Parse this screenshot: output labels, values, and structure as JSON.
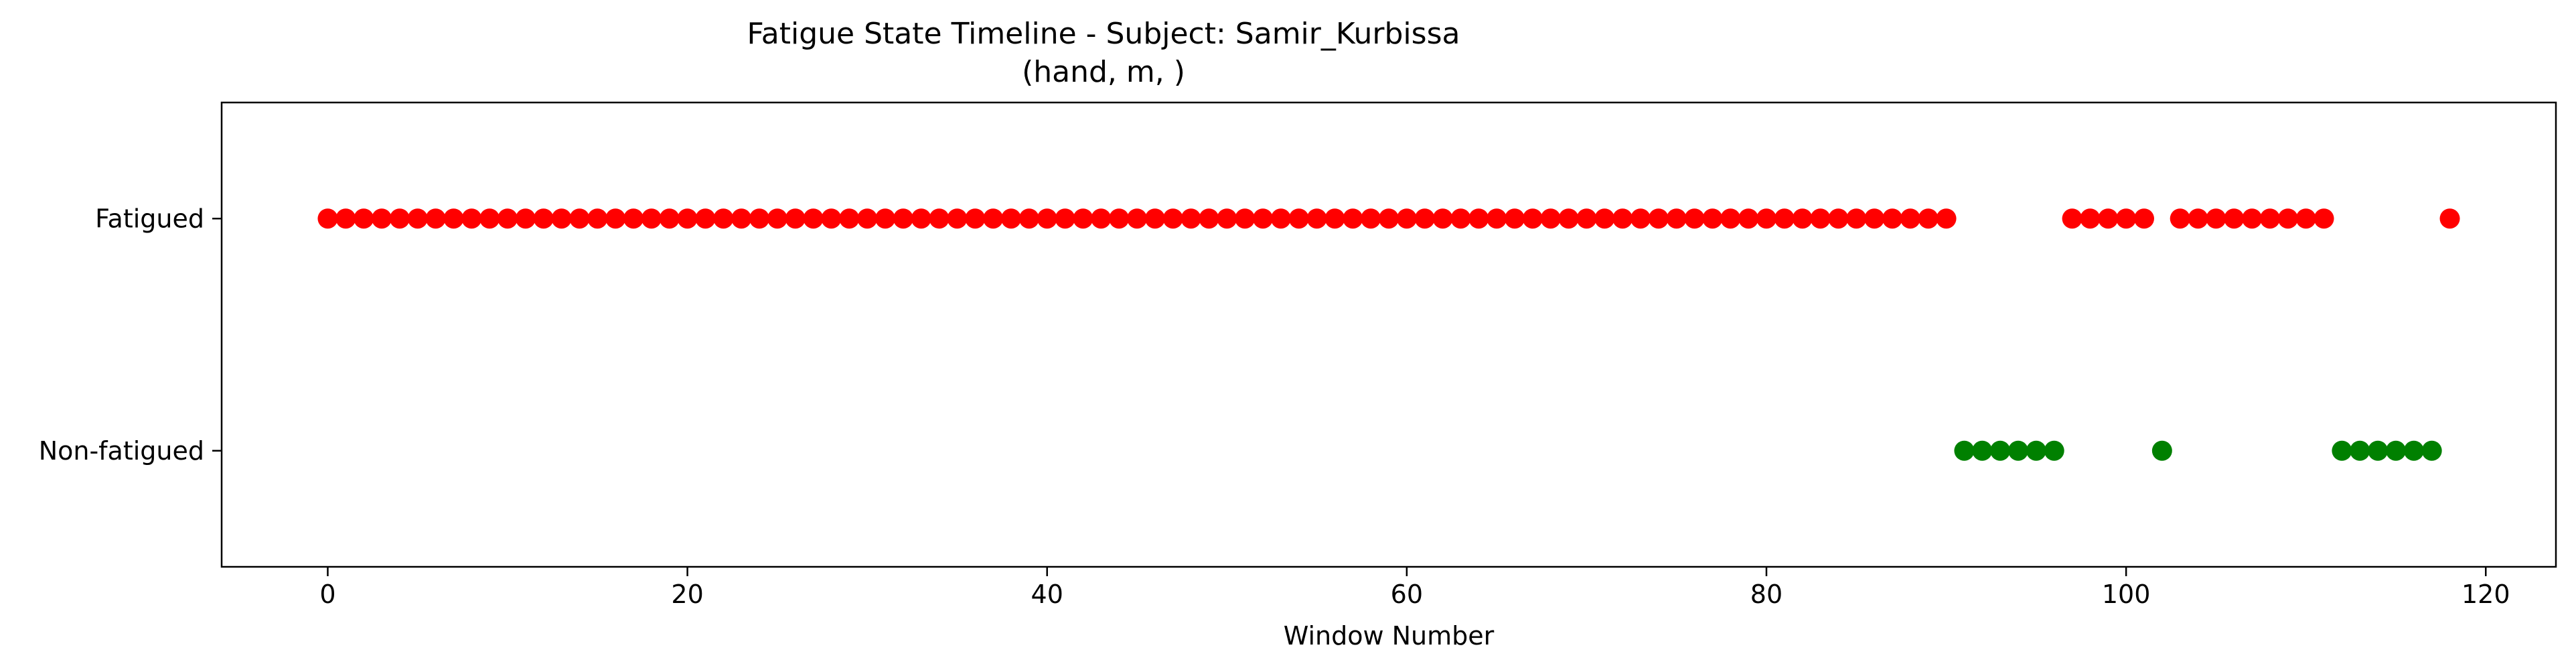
{
  "chart_data": {
    "type": "scatter",
    "title": "Fatigue State Timeline - Subject: Samir_Kurbissa",
    "subtitle": "(hand, m, )",
    "xlabel": "Window Number",
    "ylabel": "",
    "xlim": [
      -5.9,
      123.9
    ],
    "ylim": [
      -0.5,
      1.5
    ],
    "x_ticks": [
      0,
      20,
      40,
      60,
      80,
      100,
      120
    ],
    "y_ticks": [
      {
        "value": 0,
        "label": "Non-fatigued"
      },
      {
        "value": 1,
        "label": "Fatigued"
      }
    ],
    "grid": false,
    "legend": "none",
    "colors": {
      "fatigued": "#ff0000",
      "non_fatigued": "#008000"
    },
    "series": [
      {
        "state": 1,
        "color": "#ff0000",
        "x": [
          0,
          1,
          2,
          3,
          4,
          5,
          6,
          7,
          8,
          9,
          10,
          11,
          12,
          13,
          14,
          15,
          16,
          17,
          18,
          19,
          20,
          21,
          22,
          23,
          24,
          25,
          26,
          27,
          28,
          29,
          30,
          31,
          32,
          33,
          34,
          35,
          36,
          37,
          38,
          39,
          40,
          41,
          42,
          43,
          44,
          45,
          46,
          47,
          48,
          49,
          50,
          51,
          52,
          53,
          54,
          55,
          56,
          57,
          58,
          59,
          60,
          61,
          62,
          63,
          64,
          65,
          66,
          67,
          68,
          69,
          70,
          71,
          72,
          73,
          74,
          75,
          76,
          77,
          78,
          79,
          80,
          81,
          82,
          83,
          84,
          85,
          86,
          87,
          88,
          89,
          90,
          97,
          98,
          99,
          100,
          101,
          103,
          104,
          105,
          106,
          107,
          108,
          109,
          110,
          111,
          118
        ]
      },
      {
        "state": 0,
        "color": "#008000",
        "x": [
          91,
          92,
          93,
          94,
          95,
          96,
          102,
          112,
          113,
          114,
          115,
          116,
          117
        ]
      }
    ]
  }
}
